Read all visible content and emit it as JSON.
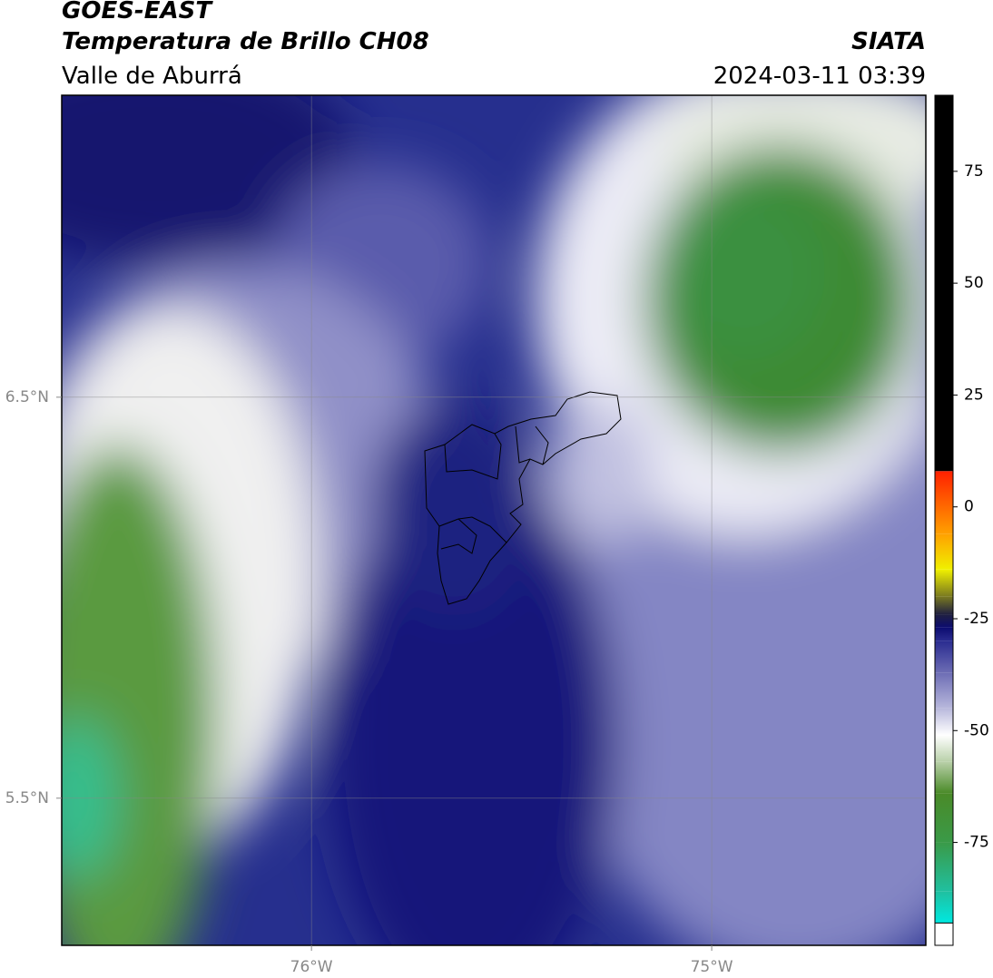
{
  "header": {
    "title": "GOES-EAST",
    "subtitle": "Temperatura de Brillo CH08",
    "region": "Valle de Aburrá",
    "source": "SIATA",
    "timestamp": "2024-03-11 03:39"
  },
  "map": {
    "xlim": [
      -76.624,
      -74.465
    ],
    "ylim": [
      5.133,
      7.253
    ],
    "xticks": [
      {
        "value": -76,
        "label": "76°W"
      },
      {
        "value": -75,
        "label": "75°W"
      }
    ],
    "yticks": [
      {
        "value": 6.5,
        "label": "6.5°N"
      },
      {
        "value": 5.5,
        "label": "5.5°N"
      }
    ],
    "grid": true
  },
  "colorbar": {
    "lim": [
      -98,
      92
    ],
    "ticks": [
      75,
      50,
      25,
      0,
      -25,
      -50,
      -75
    ],
    "stops": [
      {
        "value": -98,
        "color": "#ffffff"
      },
      {
        "value": -93,
        "color": "#ffffff"
      },
      {
        "value": -93,
        "color": "#00e8e0"
      },
      {
        "value": -86,
        "color": "#20c0a0"
      },
      {
        "value": -75,
        "color": "#3a9a48"
      },
      {
        "value": -64,
        "color": "#4a8a28"
      },
      {
        "value": -57,
        "color": "#b8d0a8"
      },
      {
        "value": -51,
        "color": "#ffffff"
      },
      {
        "value": -45,
        "color": "#b8b8dc"
      },
      {
        "value": -37,
        "color": "#6c6cb4"
      },
      {
        "value": -30,
        "color": "#2a2c90"
      },
      {
        "value": -27,
        "color": "#0c0c70"
      },
      {
        "value": -24,
        "color": "#202040"
      },
      {
        "value": -20,
        "color": "#7a7a20"
      },
      {
        "value": -14,
        "color": "#f0f000"
      },
      {
        "value": -6,
        "color": "#ffa000"
      },
      {
        "value": 8,
        "color": "#ff2000"
      },
      {
        "value": 8,
        "color": "#000000"
      },
      {
        "value": 92,
        "color": "#000000"
      }
    ]
  }
}
